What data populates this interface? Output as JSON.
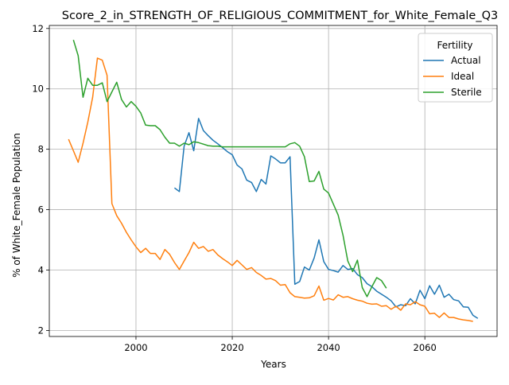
{
  "chart_data": {
    "type": "line",
    "title": "Score_2_in_STRENGTH_OF_RELIGIOUS_COMMITMENT_for_White_Female_Q3",
    "xlabel": "Years",
    "ylabel": "% of White_Female Population",
    "xlim": [
      1982,
      2075
    ],
    "ylim": [
      1.8,
      12.1
    ],
    "x_ticks": [
      2000,
      2020,
      2040,
      2060
    ],
    "y_ticks": [
      2,
      4,
      6,
      8,
      10,
      12
    ],
    "grid": true,
    "legend": {
      "title": "Fertility",
      "placement": "top-right"
    },
    "series": [
      {
        "name": "Actual",
        "color": "#1f77b4",
        "points": [
          [
            2008,
            6.72
          ],
          [
            2009,
            6.6
          ],
          [
            2010,
            8.1
          ],
          [
            2011,
            8.55
          ],
          [
            2012,
            7.95
          ],
          [
            2013,
            9.02
          ],
          [
            2014,
            8.62
          ],
          [
            2015,
            8.45
          ],
          [
            2016,
            8.3
          ],
          [
            2017,
            8.18
          ],
          [
            2018,
            8.05
          ],
          [
            2019,
            7.92
          ],
          [
            2020,
            7.82
          ],
          [
            2021,
            7.48
          ],
          [
            2022,
            7.35
          ],
          [
            2023,
            6.98
          ],
          [
            2024,
            6.9
          ],
          [
            2025,
            6.6
          ],
          [
            2026,
            7.0
          ],
          [
            2027,
            6.85
          ],
          [
            2028,
            7.78
          ],
          [
            2029,
            7.68
          ],
          [
            2030,
            7.55
          ],
          [
            2031,
            7.55
          ],
          [
            2032,
            7.75
          ],
          [
            2033,
            3.53
          ],
          [
            2034,
            3.62
          ],
          [
            2035,
            4.1
          ],
          [
            2036,
            4.0
          ],
          [
            2037,
            4.4
          ],
          [
            2038,
            5.0
          ],
          [
            2039,
            4.28
          ],
          [
            2040,
            4.02
          ],
          [
            2041,
            3.98
          ],
          [
            2042,
            3.93
          ],
          [
            2043,
            4.15
          ],
          [
            2044,
            4.02
          ],
          [
            2045,
            4.05
          ],
          [
            2046,
            3.85
          ],
          [
            2047,
            3.75
          ],
          [
            2048,
            3.55
          ],
          [
            2049,
            3.45
          ],
          [
            2050,
            3.3
          ],
          [
            2051,
            3.2
          ],
          [
            2052,
            3.1
          ],
          [
            2053,
            2.98
          ],
          [
            2054,
            2.78
          ],
          [
            2055,
            2.85
          ],
          [
            2056,
            2.82
          ],
          [
            2057,
            3.05
          ],
          [
            2058,
            2.88
          ],
          [
            2059,
            3.33
          ],
          [
            2060,
            3.05
          ],
          [
            2061,
            3.48
          ],
          [
            2062,
            3.2
          ],
          [
            2063,
            3.5
          ],
          [
            2064,
            3.1
          ],
          [
            2065,
            3.2
          ],
          [
            2066,
            3.02
          ],
          [
            2067,
            2.98
          ],
          [
            2068,
            2.78
          ],
          [
            2069,
            2.77
          ],
          [
            2070,
            2.5
          ],
          [
            2071,
            2.4
          ]
        ]
      },
      {
        "name": "Ideal",
        "color": "#ff7f0e",
        "points": [
          [
            1986,
            8.33
          ],
          [
            1987,
            7.95
          ],
          [
            1988,
            7.57
          ],
          [
            1989,
            8.2
          ],
          [
            1990,
            8.9
          ],
          [
            1991,
            9.72
          ],
          [
            1992,
            11.02
          ],
          [
            1993,
            10.95
          ],
          [
            1994,
            10.45
          ],
          [
            1995,
            6.2
          ],
          [
            1996,
            5.8
          ],
          [
            1997,
            5.55
          ],
          [
            1998,
            5.25
          ],
          [
            1999,
            5.0
          ],
          [
            2000,
            4.77
          ],
          [
            2001,
            4.58
          ],
          [
            2002,
            4.72
          ],
          [
            2003,
            4.55
          ],
          [
            2004,
            4.55
          ],
          [
            2005,
            4.35
          ],
          [
            2006,
            4.68
          ],
          [
            2007,
            4.52
          ],
          [
            2008,
            4.25
          ],
          [
            2009,
            4.02
          ],
          [
            2010,
            4.3
          ],
          [
            2011,
            4.58
          ],
          [
            2012,
            4.92
          ],
          [
            2013,
            4.72
          ],
          [
            2014,
            4.78
          ],
          [
            2015,
            4.62
          ],
          [
            2016,
            4.68
          ],
          [
            2017,
            4.5
          ],
          [
            2018,
            4.38
          ],
          [
            2019,
            4.27
          ],
          [
            2020,
            4.15
          ],
          [
            2021,
            4.32
          ],
          [
            2022,
            4.17
          ],
          [
            2023,
            4.02
          ],
          [
            2024,
            4.08
          ],
          [
            2025,
            3.92
          ],
          [
            2026,
            3.82
          ],
          [
            2027,
            3.7
          ],
          [
            2028,
            3.72
          ],
          [
            2029,
            3.65
          ],
          [
            2030,
            3.5
          ],
          [
            2031,
            3.52
          ],
          [
            2032,
            3.25
          ],
          [
            2033,
            3.12
          ],
          [
            2034,
            3.1
          ],
          [
            2035,
            3.07
          ],
          [
            2036,
            3.08
          ],
          [
            2037,
            3.15
          ],
          [
            2038,
            3.47
          ],
          [
            2039,
            3.0
          ],
          [
            2040,
            3.06
          ],
          [
            2041,
            3.01
          ],
          [
            2042,
            3.18
          ],
          [
            2043,
            3.1
          ],
          [
            2044,
            3.12
          ],
          [
            2045,
            3.05
          ],
          [
            2046,
            3.0
          ],
          [
            2047,
            2.97
          ],
          [
            2048,
            2.9
          ],
          [
            2049,
            2.87
          ],
          [
            2050,
            2.88
          ],
          [
            2051,
            2.8
          ],
          [
            2052,
            2.82
          ],
          [
            2053,
            2.7
          ],
          [
            2054,
            2.8
          ],
          [
            2055,
            2.67
          ],
          [
            2056,
            2.88
          ],
          [
            2057,
            2.85
          ],
          [
            2058,
            2.95
          ],
          [
            2059,
            2.85
          ],
          [
            2060,
            2.8
          ],
          [
            2061,
            2.55
          ],
          [
            2062,
            2.57
          ],
          [
            2063,
            2.43
          ],
          [
            2064,
            2.58
          ],
          [
            2065,
            2.43
          ],
          [
            2066,
            2.43
          ],
          [
            2067,
            2.38
          ],
          [
            2068,
            2.35
          ],
          [
            2069,
            2.33
          ],
          [
            2070,
            2.3
          ]
        ]
      },
      {
        "name": "Sterile",
        "color": "#2ca02c",
        "points": [
          [
            1987,
            11.62
          ],
          [
            1988,
            11.1
          ],
          [
            1989,
            9.72
          ],
          [
            1990,
            10.35
          ],
          [
            1991,
            10.12
          ],
          [
            1992,
            10.12
          ],
          [
            1993,
            10.2
          ],
          [
            1994,
            9.58
          ],
          [
            1995,
            9.9
          ],
          [
            1996,
            10.22
          ],
          [
            1997,
            9.65
          ],
          [
            1998,
            9.4
          ],
          [
            1999,
            9.58
          ],
          [
            2000,
            9.42
          ],
          [
            2001,
            9.2
          ],
          [
            2002,
            8.8
          ],
          [
            2003,
            8.78
          ],
          [
            2004,
            8.78
          ],
          [
            2005,
            8.65
          ],
          [
            2006,
            8.4
          ],
          [
            2007,
            8.2
          ],
          [
            2008,
            8.2
          ],
          [
            2009,
            8.1
          ],
          [
            2010,
            8.2
          ],
          [
            2011,
            8.15
          ],
          [
            2012,
            8.25
          ],
          [
            2013,
            8.22
          ],
          [
            2014,
            8.17
          ],
          [
            2015,
            8.12
          ],
          [
            2016,
            8.1
          ],
          [
            2017,
            8.1
          ],
          [
            2018,
            8.08
          ],
          [
            2019,
            8.08
          ],
          [
            2020,
            8.08
          ],
          [
            2022,
            8.08
          ],
          [
            2024,
            8.08
          ],
          [
            2026,
            8.08
          ],
          [
            2028,
            8.08
          ],
          [
            2030,
            8.08
          ],
          [
            2031,
            8.08
          ],
          [
            2032,
            8.18
          ],
          [
            2033,
            8.22
          ],
          [
            2034,
            8.1
          ],
          [
            2035,
            7.75
          ],
          [
            2036,
            6.93
          ],
          [
            2037,
            6.95
          ],
          [
            2038,
            7.27
          ],
          [
            2039,
            6.68
          ],
          [
            2040,
            6.55
          ],
          [
            2041,
            6.18
          ],
          [
            2042,
            5.82
          ],
          [
            2043,
            5.15
          ],
          [
            2044,
            4.3
          ],
          [
            2045,
            3.95
          ],
          [
            2046,
            4.33
          ],
          [
            2047,
            3.42
          ],
          [
            2048,
            3.12
          ],
          [
            2049,
            3.45
          ],
          [
            2050,
            3.75
          ],
          [
            2051,
            3.65
          ],
          [
            2052,
            3.4
          ]
        ]
      }
    ]
  }
}
